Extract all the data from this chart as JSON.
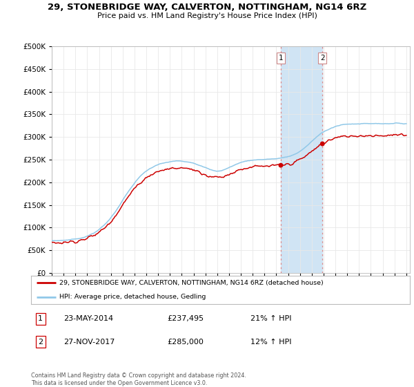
{
  "title": "29, STONEBRIDGE WAY, CALVERTON, NOTTINGHAM, NG14 6RZ",
  "subtitle": "Price paid vs. HM Land Registry's House Price Index (HPI)",
  "legend_line1": "29, STONEBRIDGE WAY, CALVERTON, NOTTINGHAM, NG14 6RZ (detached house)",
  "legend_line2": "HPI: Average price, detached house, Gedling",
  "transaction1_date": "23-MAY-2014",
  "transaction1_price": "£237,495",
  "transaction1_hpi": "21% ↑ HPI",
  "transaction2_date": "27-NOV-2017",
  "transaction2_price": "£285,000",
  "transaction2_hpi": "12% ↑ HPI",
  "footer": "Contains HM Land Registry data © Crown copyright and database right 2024.\nThis data is licensed under the Open Government Licence v3.0.",
  "ylim": [
    0,
    500000
  ],
  "yticks": [
    0,
    50000,
    100000,
    150000,
    200000,
    250000,
    300000,
    350000,
    400000,
    450000,
    500000
  ],
  "hpi_color": "#90C8E8",
  "price_color": "#CC0000",
  "highlight_color": "#D0E4F4",
  "transaction1_x": 2014.38,
  "transaction2_x": 2017.9,
  "background_color": "#FFFFFF"
}
